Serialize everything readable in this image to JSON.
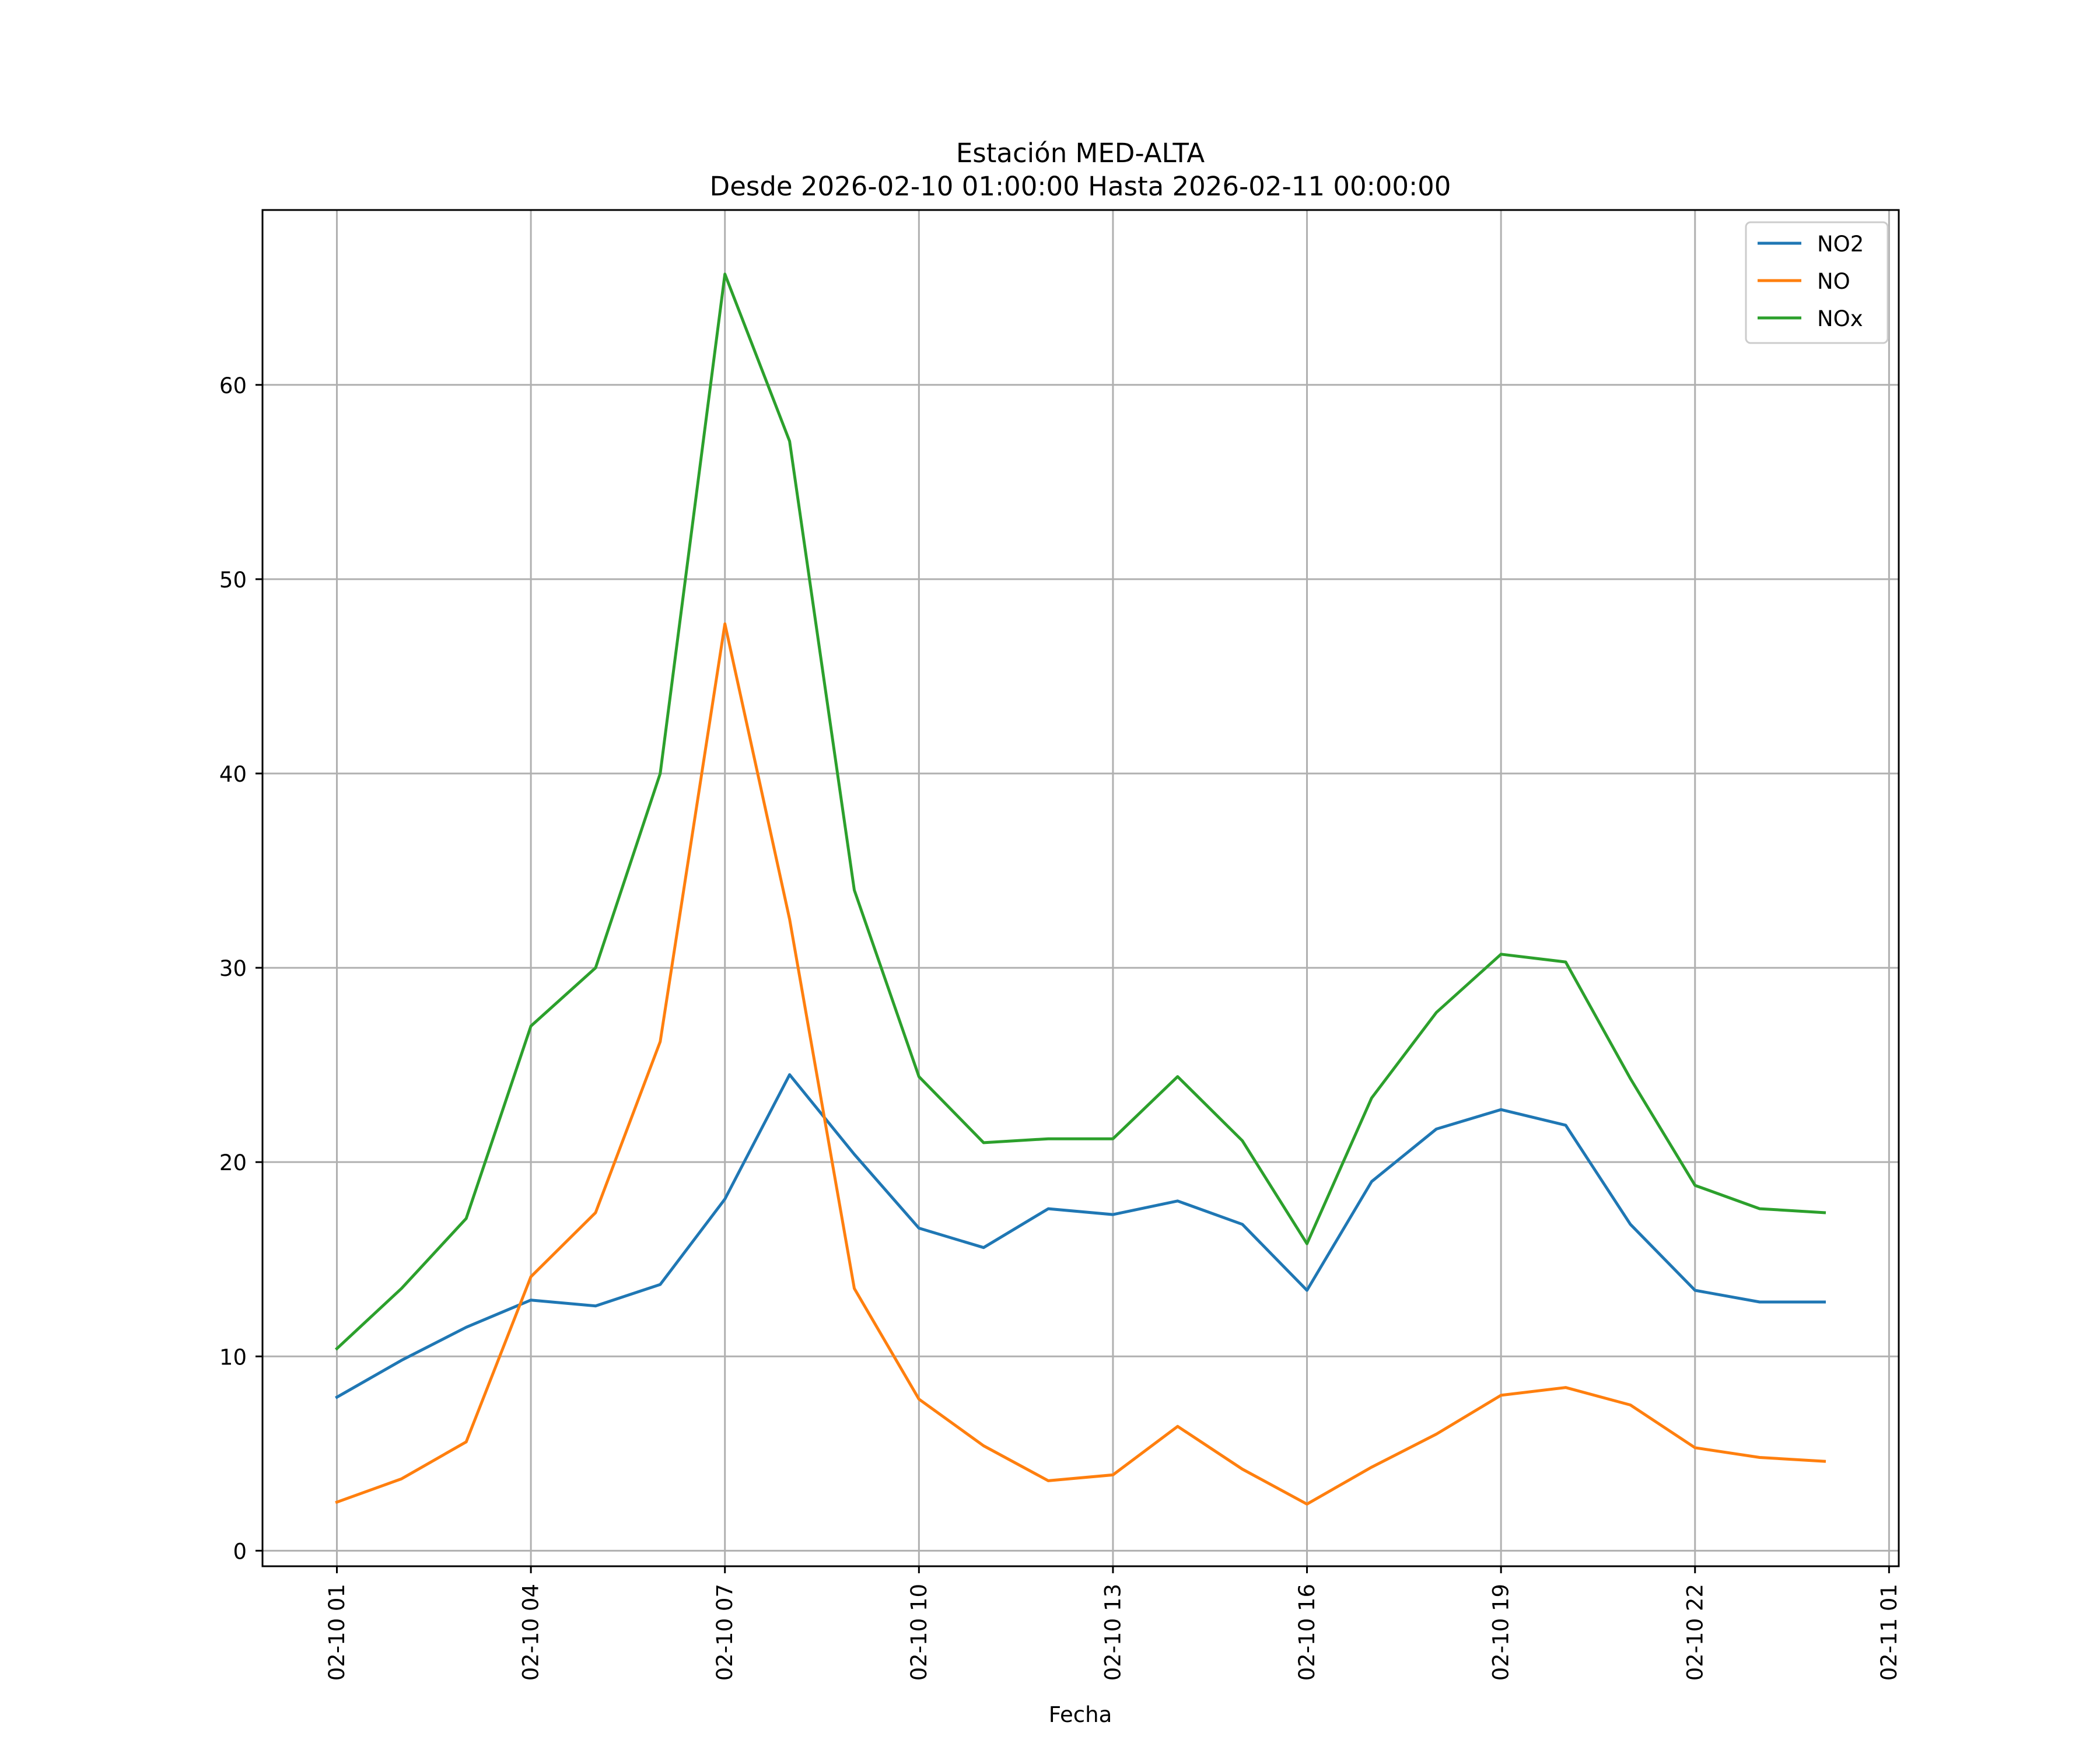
{
  "chart_data": {
    "type": "line",
    "title": "Estación MED-ALTA",
    "subtitle": "Desde 2026-02-10 01:00:00 Hasta 2026-02-11 00:00:00",
    "xlabel": "Fecha",
    "ylabel": "",
    "x": [
      "02-10 01",
      "02-10 02",
      "02-10 03",
      "02-10 04",
      "02-10 05",
      "02-10 06",
      "02-10 07",
      "02-10 08",
      "02-10 09",
      "02-10 10",
      "02-10 11",
      "02-10 12",
      "02-10 13",
      "02-10 14",
      "02-10 15",
      "02-10 16",
      "02-10 17",
      "02-10 18",
      "02-10 19",
      "02-10 20",
      "02-10 21",
      "02-10 22",
      "02-10 23",
      "02-11 00"
    ],
    "x_hours": [
      0,
      1,
      2,
      3,
      4,
      5,
      6,
      7,
      8,
      9,
      10,
      11,
      12,
      13,
      14,
      15,
      16,
      17,
      18,
      19,
      20,
      21,
      22,
      23
    ],
    "xlim_hours": [
      -1.15,
      24.15
    ],
    "xticks": {
      "labels": [
        "02-10 01",
        "02-10 04",
        "02-10 07",
        "02-10 10",
        "02-10 13",
        "02-10 16",
        "02-10 19",
        "02-10 22",
        "02-11 01"
      ],
      "hours": [
        0,
        3,
        6,
        9,
        12,
        15,
        18,
        21,
        24
      ]
    },
    "ylim": [
      -0.8,
      69
    ],
    "yticks": [
      0,
      10,
      20,
      30,
      40,
      50,
      60
    ],
    "grid": true,
    "legend_position": "top-right",
    "series": [
      {
        "name": "NO2",
        "color": "#1f77b4",
        "values": [
          7.9,
          9.8,
          11.5,
          12.9,
          12.6,
          13.7,
          18.1,
          24.5,
          20.4,
          16.6,
          15.6,
          17.6,
          17.3,
          18.0,
          16.8,
          13.4,
          19.0,
          21.7,
          22.7,
          21.9,
          16.8,
          13.4,
          12.8,
          12.8
        ]
      },
      {
        "name": "NO",
        "color": "#ff7f0e",
        "values": [
          2.5,
          3.7,
          5.6,
          14.1,
          17.4,
          26.2,
          47.7,
          32.5,
          13.5,
          7.8,
          5.4,
          3.6,
          3.9,
          6.4,
          4.2,
          2.4,
          4.3,
          6.0,
          8.0,
          8.4,
          7.5,
          5.3,
          4.8,
          4.6
        ]
      },
      {
        "name": "NOx",
        "color": "#2ca02c",
        "values": [
          10.4,
          13.5,
          17.1,
          27.0,
          30.0,
          40.0,
          65.7,
          57.1,
          34.0,
          24.4,
          21.0,
          21.2,
          21.2,
          24.4,
          21.1,
          15.8,
          23.3,
          27.7,
          30.7,
          30.3,
          24.3,
          18.8,
          17.6,
          17.4
        ]
      }
    ]
  }
}
